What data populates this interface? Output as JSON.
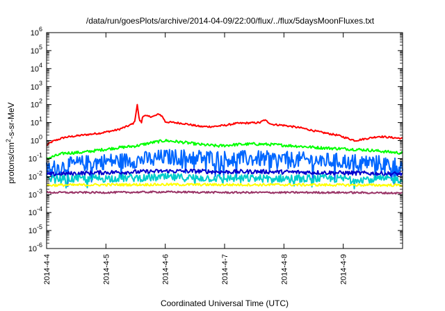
{
  "chart_data": {
    "type": "line",
    "title": "/data/run/goesPlots/archive/2014-04-09/22:00/flux/../flux/5daysMoonFluxes.txt",
    "xlabel": "Coordinated Universal Time (UTC)",
    "ylabel_base": "protons/cm",
    "ylabel_sup": "2",
    "ylabel_rest": "-s-sr-MeV",
    "y_scale": "log",
    "ylim": [
      1e-06,
      1000000.0
    ],
    "y_ticks": [
      {
        "value": 1e-06,
        "base": "10",
        "exp": "-6"
      },
      {
        "value": 1e-05,
        "base": "10",
        "exp": "-5"
      },
      {
        "value": 0.0001,
        "base": "10",
        "exp": "-4"
      },
      {
        "value": 0.001,
        "base": "10",
        "exp": "-3"
      },
      {
        "value": 0.01,
        "base": "10",
        "exp": "-2"
      },
      {
        "value": 0.1,
        "base": "10",
        "exp": "-1"
      },
      {
        "value": 1.0,
        "base": "10",
        "exp": "0"
      },
      {
        "value": 10.0,
        "base": "10",
        "exp": "1"
      },
      {
        "value": 100.0,
        "base": "10",
        "exp": "2"
      },
      {
        "value": 1000.0,
        "base": "10",
        "exp": "3"
      },
      {
        "value": 10000.0,
        "base": "10",
        "exp": "4"
      },
      {
        "value": 100000.0,
        "base": "10",
        "exp": "5"
      },
      {
        "value": 1000000.0,
        "base": "10",
        "exp": "6"
      }
    ],
    "x_range_days": [
      0,
      6.0
    ],
    "x_ticks": [
      {
        "day": 0,
        "label": "2014-4-4"
      },
      {
        "day": 1,
        "label": "2014-4-5"
      },
      {
        "day": 2,
        "label": "2014-4-6"
      },
      {
        "day": 3,
        "label": "2014-4-7"
      },
      {
        "day": 4,
        "label": "2014-4-8"
      },
      {
        "day": 5,
        "label": "2014-4-9"
      }
    ],
    "grid": false,
    "series": [
      {
        "color": "#ff0000",
        "noise": 0.05,
        "points": [
          [
            0,
            0.55
          ],
          [
            0.1,
            0.9
          ],
          [
            0.3,
            1.5
          ],
          [
            0.6,
            2.0
          ],
          [
            0.9,
            2.6
          ],
          [
            1.2,
            4.0
          ],
          [
            1.4,
            7.0
          ],
          [
            1.48,
            10
          ],
          [
            1.53,
            100
          ],
          [
            1.56,
            15
          ],
          [
            1.6,
            10
          ],
          [
            1.62,
            25
          ],
          [
            1.7,
            22
          ],
          [
            1.8,
            22
          ],
          [
            1.9,
            30
          ],
          [
            1.96,
            20
          ],
          [
            2.0,
            11
          ],
          [
            2.3,
            9
          ],
          [
            2.6,
            6
          ],
          [
            2.8,
            6
          ],
          [
            3.0,
            7
          ],
          [
            3.2,
            9
          ],
          [
            3.4,
            9.5
          ],
          [
            3.6,
            10
          ],
          [
            3.67,
            14
          ],
          [
            3.8,
            8
          ],
          [
            4.0,
            7
          ],
          [
            4.3,
            5
          ],
          [
            4.6,
            3
          ],
          [
            4.9,
            2
          ],
          [
            5.2,
            1.0
          ],
          [
            5.6,
            1.7
          ],
          [
            6.0,
            1.3
          ]
        ]
      },
      {
        "color": "#00ff00",
        "noise": 0.08,
        "points": [
          [
            0,
            0.1
          ],
          [
            0.3,
            0.2
          ],
          [
            0.6,
            0.22
          ],
          [
            0.9,
            0.3
          ],
          [
            1.2,
            0.4
          ],
          [
            1.5,
            0.5
          ],
          [
            1.8,
            0.8
          ],
          [
            2.0,
            1.0
          ],
          [
            2.3,
            0.8
          ],
          [
            2.6,
            0.6
          ],
          [
            2.9,
            0.5
          ],
          [
            3.2,
            0.6
          ],
          [
            3.5,
            0.65
          ],
          [
            3.8,
            0.6
          ],
          [
            4.2,
            0.5
          ],
          [
            4.6,
            0.4
          ],
          [
            5.0,
            0.35
          ],
          [
            5.4,
            0.3
          ],
          [
            6.0,
            0.2
          ]
        ]
      },
      {
        "color": "#0066ff",
        "noise": 0.45,
        "points": [
          [
            0,
            0.025
          ],
          [
            0.5,
            0.05
          ],
          [
            1.0,
            0.07
          ],
          [
            1.5,
            0.08
          ],
          [
            2.0,
            0.12
          ],
          [
            2.5,
            0.12
          ],
          [
            3.0,
            0.1
          ],
          [
            3.5,
            0.1
          ],
          [
            4.0,
            0.09
          ],
          [
            4.5,
            0.08
          ],
          [
            5.0,
            0.07
          ],
          [
            5.5,
            0.06
          ],
          [
            6.0,
            0.04
          ]
        ]
      },
      {
        "color": "#0000cc",
        "noise": 0.12,
        "points": [
          [
            0,
            0.013
          ],
          [
            0.5,
            0.015
          ],
          [
            1.0,
            0.017
          ],
          [
            1.5,
            0.018
          ],
          [
            2.0,
            0.02
          ],
          [
            2.5,
            0.02
          ],
          [
            3.0,
            0.018
          ],
          [
            3.5,
            0.019
          ],
          [
            4.0,
            0.018
          ],
          [
            4.5,
            0.017
          ],
          [
            5.0,
            0.016
          ],
          [
            5.5,
            0.015
          ],
          [
            6.0,
            0.014
          ]
        ]
      },
      {
        "color": "#00cccc",
        "noise": 0.22,
        "points": [
          [
            0,
            0.007
          ],
          [
            1.0,
            0.008
          ],
          [
            2.0,
            0.009
          ],
          [
            3.0,
            0.008
          ],
          [
            4.0,
            0.008
          ],
          [
            5.0,
            0.0075
          ],
          [
            6.0,
            0.007
          ]
        ]
      },
      {
        "color": "#ffff00",
        "noise": 0.07,
        "points": [
          [
            0,
            0.0033
          ],
          [
            1.0,
            0.0035
          ],
          [
            2.0,
            0.0036
          ],
          [
            3.0,
            0.0035
          ],
          [
            4.0,
            0.0035
          ],
          [
            5.0,
            0.0034
          ],
          [
            6.0,
            0.0033
          ]
        ]
      },
      {
        "color": "#993366",
        "noise": 0.05,
        "points": [
          [
            0,
            0.0013
          ],
          [
            1.0,
            0.0013
          ],
          [
            2.0,
            0.0014
          ],
          [
            3.0,
            0.0013
          ],
          [
            4.0,
            0.0013
          ],
          [
            5.0,
            0.0013
          ],
          [
            6.0,
            0.0012
          ]
        ]
      }
    ]
  }
}
